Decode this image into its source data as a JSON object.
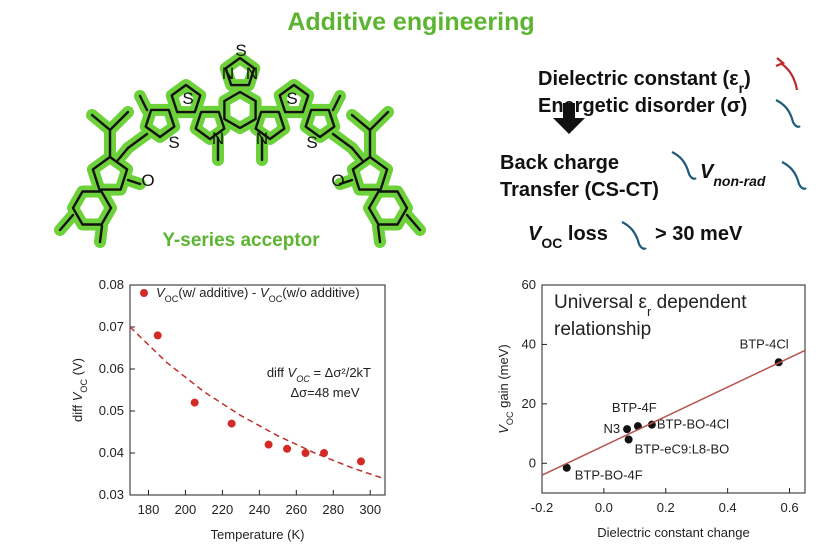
{
  "header": {
    "title": "Additive engineering"
  },
  "molecule": {
    "label": "Y-series acceptor",
    "atoms": {
      "n": "N",
      "s": "S",
      "o": "O"
    }
  },
  "mechanism": {
    "dielectric": {
      "text": "Dielectric constant (ε",
      "sub": "r",
      "end": ")"
    },
    "disorder": "Energetic disorder (σ)",
    "back1": "Back charge",
    "back2": "Transfer (CS-CT)",
    "vnonrad": {
      "v": "V",
      "sub": "non-rad"
    },
    "loss": {
      "v": "V",
      "sub": "OC",
      "text": " loss",
      "value": "> 30 meV"
    }
  },
  "chart_data": [
    {
      "type": "scatter",
      "xlabel": "Temperature (K)",
      "ylabel": {
        "text": "diff ",
        "v": "V",
        "sub": "OC",
        "unit": " (V)"
      },
      "xlim": [
        170,
        308
      ],
      "xticks": [
        180,
        200,
        220,
        240,
        260,
        280,
        300
      ],
      "ylim": [
        0.03,
        0.08
      ],
      "yticks": [
        0.03,
        0.04,
        0.05,
        0.06,
        0.07,
        0.08
      ],
      "legend": "upper left",
      "legend_parts": [
        "V",
        "OC",
        "(w/ additive) - ",
        "V",
        "OC",
        "(w/o additive)"
      ],
      "annotation": {
        "parts": [
          "diff ",
          "V",
          "OC",
          " = Δσ²/2kT"
        ],
        "line2": "Δσ=48 meV"
      },
      "series": [
        {
          "color": "#d42a25",
          "style": "points",
          "x": [
            185,
            205,
            225,
            245,
            255,
            265,
            275,
            295
          ],
          "values": [
            0.068,
            0.052,
            0.047,
            0.042,
            0.041,
            0.04,
            0.04,
            0.038
          ]
        },
        {
          "color": "#c0302c",
          "style": "dashed",
          "x": [
            170,
            190,
            210,
            230,
            250,
            270,
            290,
            308
          ],
          "values": [
            0.07,
            0.0615,
            0.0546,
            0.0489,
            0.0441,
            0.04,
            0.0365,
            0.0338
          ]
        }
      ]
    },
    {
      "type": "scatter",
      "title": {
        "text": "Universal ε",
        "sub": "r",
        "end": " dependent"
      },
      "title2": "relationship",
      "xlabel": "Dielectric constant change",
      "ylabel": {
        "v": "V",
        "sub": "OC",
        "unit": " gain (meV)"
      },
      "xlim": [
        -0.2,
        0.65
      ],
      "xticks": [
        -0.2,
        {
          "value": 0,
          "label": "0.0"
        },
        0.2,
        0.4,
        0.6
      ],
      "ylim": [
        -10,
        60
      ],
      "yticks": [
        0,
        20,
        40,
        60
      ],
      "series": [
        {
          "color": "#111111",
          "style": "points",
          "x": [
            -0.12,
            0.075,
            0.08,
            0.11,
            0.155,
            0.565
          ],
          "values": [
            -1.5,
            11.5,
            8,
            12.5,
            13,
            34
          ],
          "point_labels": [
            "BTP-BO-4F",
            "N3",
            "BTP-eC9:L8-BO",
            "BTP-4F",
            "BTP-BO-4Cl",
            "BTP-4Cl"
          ]
        },
        {
          "color": "#b5544c",
          "style": "solid",
          "x": [
            -0.2,
            0.65
          ],
          "values": [
            -4,
            38
          ]
        }
      ]
    }
  ]
}
